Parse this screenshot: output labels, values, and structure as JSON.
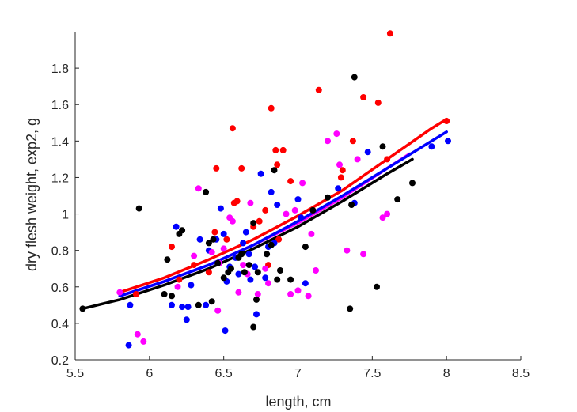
{
  "chart_data": {
    "type": "scatter",
    "xlabel": "length, cm",
    "ylabel": "dry flesh weight, exp2, g",
    "xlim": [
      5.5,
      8.5
    ],
    "ylim": [
      0.2,
      2.0
    ],
    "x_ticks": [
      "5.5",
      "6",
      "6.5",
      "7",
      "7.5",
      "8",
      "8.5"
    ],
    "y_ticks": [
      "0.2",
      "0.4",
      "0.6",
      "0.8",
      "1",
      "1.2",
      "1.4",
      "1.6",
      "1.8"
    ],
    "grid": false,
    "legend": "none",
    "series": [
      {
        "color": "#ff0000",
        "points": [
          [
            5.91,
            0.56
          ],
          [
            6.15,
            0.82
          ],
          [
            6.2,
            0.64
          ],
          [
            6.3,
            0.72
          ],
          [
            6.4,
            0.68
          ],
          [
            6.44,
            0.9
          ],
          [
            6.45,
            1.25
          ],
          [
            6.52,
            0.86
          ],
          [
            6.56,
            1.47
          ],
          [
            6.57,
            1.06
          ],
          [
            6.59,
            1.07
          ],
          [
            6.62,
            1.25
          ],
          [
            6.7,
            0.93
          ],
          [
            6.74,
            0.96
          ],
          [
            6.78,
            1.02
          ],
          [
            6.8,
            0.72
          ],
          [
            6.82,
            1.58
          ],
          [
            6.85,
            1.35
          ],
          [
            6.86,
            1.27
          ],
          [
            6.87,
            0.86
          ],
          [
            6.9,
            1.35
          ],
          [
            6.95,
            1.18
          ],
          [
            7.1,
            1.02
          ],
          [
            7.14,
            1.68
          ],
          [
            7.29,
            1.2
          ],
          [
            7.3,
            1.24
          ],
          [
            7.37,
            1.4
          ],
          [
            7.44,
            1.64
          ],
          [
            7.54,
            1.61
          ],
          [
            7.6,
            1.3
          ],
          [
            7.62,
            1.99
          ],
          [
            8.0,
            1.51
          ]
        ],
        "fit": [
          [
            5.8,
            0.57
          ],
          [
            6.1,
            0.65
          ],
          [
            6.4,
            0.75
          ],
          [
            6.7,
            0.86
          ],
          [
            7.0,
            0.99
          ],
          [
            7.3,
            1.13
          ],
          [
            7.6,
            1.3
          ],
          [
            7.9,
            1.47
          ],
          [
            8.0,
            1.52
          ]
        ]
      },
      {
        "color": "#0000ff",
        "points": [
          [
            5.86,
            0.28
          ],
          [
            5.87,
            0.5
          ],
          [
            6.15,
            0.5
          ],
          [
            6.18,
            0.93
          ],
          [
            6.22,
            0.49
          ],
          [
            6.25,
            0.42
          ],
          [
            6.26,
            0.49
          ],
          [
            6.28,
            0.61
          ],
          [
            6.34,
            0.86
          ],
          [
            6.38,
            0.5
          ],
          [
            6.4,
            0.8
          ],
          [
            6.45,
            0.86
          ],
          [
            6.48,
            1.03
          ],
          [
            6.5,
            0.89
          ],
          [
            6.51,
            0.36
          ],
          [
            6.52,
            0.63
          ],
          [
            6.54,
            0.71
          ],
          [
            6.58,
            0.76
          ],
          [
            6.6,
            0.67
          ],
          [
            6.63,
            0.84
          ],
          [
            6.65,
            0.9
          ],
          [
            6.67,
            0.78
          ],
          [
            6.68,
            0.64
          ],
          [
            6.71,
            0.71
          ],
          [
            6.72,
            0.45
          ],
          [
            6.75,
            1.22
          ],
          [
            6.78,
            0.65
          ],
          [
            6.8,
            0.82
          ],
          [
            6.82,
            1.12
          ],
          [
            6.84,
            0.84
          ],
          [
            6.86,
            1.05
          ],
          [
            7.0,
            1.08
          ],
          [
            7.02,
            0.98
          ],
          [
            7.05,
            0.62
          ],
          [
            7.27,
            1.14
          ],
          [
            7.38,
            1.06
          ],
          [
            7.47,
            1.34
          ],
          [
            7.9,
            1.37
          ],
          [
            8.01,
            1.4
          ]
        ],
        "fit": [
          [
            5.8,
            0.55
          ],
          [
            6.1,
            0.63
          ],
          [
            6.4,
            0.72
          ],
          [
            6.7,
            0.83
          ],
          [
            7.0,
            0.96
          ],
          [
            7.3,
            1.1
          ],
          [
            7.6,
            1.25
          ],
          [
            7.9,
            1.4
          ],
          [
            8.0,
            1.45
          ]
        ]
      },
      {
        "color": "#ff00ff",
        "points": [
          [
            5.8,
            0.57
          ],
          [
            5.92,
            0.34
          ],
          [
            5.96,
            0.3
          ],
          [
            6.19,
            0.6
          ],
          [
            6.3,
            0.77
          ],
          [
            6.33,
            1.14
          ],
          [
            6.42,
            0.79
          ],
          [
            6.46,
            0.47
          ],
          [
            6.47,
            0.73
          ],
          [
            6.5,
            0.81
          ],
          [
            6.54,
            0.98
          ],
          [
            6.56,
            0.96
          ],
          [
            6.6,
            0.57
          ],
          [
            6.63,
            0.72
          ],
          [
            6.66,
            0.67
          ],
          [
            6.68,
            1.06
          ],
          [
            6.73,
            0.56
          ],
          [
            6.78,
            0.7
          ],
          [
            6.8,
            0.62
          ],
          [
            6.92,
            1.0
          ],
          [
            6.95,
            0.56
          ],
          [
            6.98,
            1.02
          ],
          [
            7.0,
            0.58
          ],
          [
            7.03,
            1.17
          ],
          [
            7.07,
            0.55
          ],
          [
            7.09,
            0.89
          ],
          [
            7.12,
            0.69
          ],
          [
            7.2,
            1.4
          ],
          [
            7.26,
            1.44
          ],
          [
            7.28,
            1.27
          ],
          [
            7.33,
            0.8
          ],
          [
            7.4,
            1.3
          ],
          [
            7.44,
            0.78
          ],
          [
            7.57,
            0.98
          ],
          [
            7.6,
            1.0
          ]
        ],
        "fit": [
          [
            5.8,
            0.55
          ],
          [
            6.1,
            0.63
          ],
          [
            6.4,
            0.72
          ],
          [
            6.7,
            0.83
          ],
          [
            7.0,
            0.95
          ],
          [
            7.3,
            1.09
          ],
          [
            7.6,
            1.25
          ],
          [
            7.75,
            1.33
          ]
        ]
      },
      {
        "color": "#000000",
        "points": [
          [
            5.55,
            0.48
          ],
          [
            5.93,
            1.03
          ],
          [
            6.1,
            0.56
          ],
          [
            6.12,
            0.75
          ],
          [
            6.15,
            0.55
          ],
          [
            6.2,
            0.89
          ],
          [
            6.22,
            0.91
          ],
          [
            6.33,
            0.5
          ],
          [
            6.38,
            1.12
          ],
          [
            6.4,
            0.84
          ],
          [
            6.42,
            0.52
          ],
          [
            6.43,
            0.86
          ],
          [
            6.46,
            0.73
          ],
          [
            6.5,
            0.65
          ],
          [
            6.53,
            0.68
          ],
          [
            6.55,
            0.7
          ],
          [
            6.6,
            0.76
          ],
          [
            6.62,
            0.78
          ],
          [
            6.64,
            0.68
          ],
          [
            6.67,
            0.72
          ],
          [
            6.7,
            0.38
          ],
          [
            6.7,
            0.95
          ],
          [
            6.72,
            0.53
          ],
          [
            6.73,
            0.68
          ],
          [
            6.79,
            0.78
          ],
          [
            6.82,
            0.83
          ],
          [
            6.84,
            1.24
          ],
          [
            6.86,
            0.64
          ],
          [
            6.88,
            0.69
          ],
          [
            6.95,
            0.64
          ],
          [
            7.05,
            0.82
          ],
          [
            7.1,
            1.02
          ],
          [
            7.2,
            1.09
          ],
          [
            7.35,
            0.48
          ],
          [
            7.36,
            1.05
          ],
          [
            7.38,
            1.75
          ],
          [
            7.53,
            0.6
          ],
          [
            7.57,
            1.37
          ],
          [
            7.67,
            1.08
          ],
          [
            7.77,
            1.17
          ]
        ],
        "fit": [
          [
            5.55,
            0.48
          ],
          [
            5.8,
            0.53
          ],
          [
            6.1,
            0.61
          ],
          [
            6.4,
            0.7
          ],
          [
            6.7,
            0.81
          ],
          [
            7.0,
            0.93
          ],
          [
            7.3,
            1.07
          ],
          [
            7.6,
            1.22
          ],
          [
            7.77,
            1.3
          ]
        ]
      }
    ]
  }
}
